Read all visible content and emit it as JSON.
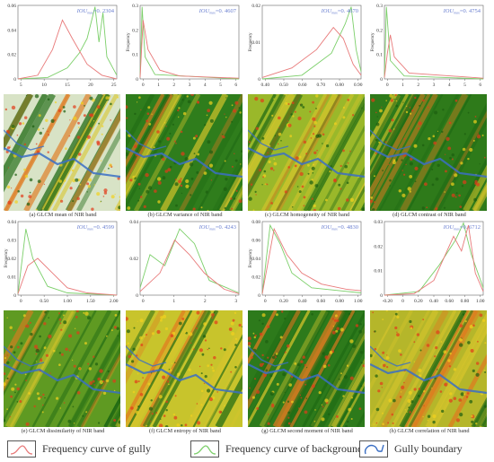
{
  "panels": [
    {
      "iou": "IOU",
      "sub": "max",
      "val": "=0. 2304",
      "caption": "(a) GLCM mean of NIR band",
      "ylab": "",
      "xticks": [
        "5",
        "10",
        "15",
        "20",
        "25"
      ],
      "yticks": [
        "0.06",
        "0.04",
        "0.02",
        "0"
      ],
      "base": "#d8e3c6",
      "style": "mean"
    },
    {
      "iou": "IOU",
      "sub": "max",
      "val": "=0. 4607",
      "caption": "(b) GLCM variance of NIR band",
      "ylab": "Frequency",
      "xticks": [
        "0",
        "1",
        "2",
        "3",
        "4",
        "5",
        "6"
      ],
      "yticks": [
        "0.3",
        "0.2",
        "0.1",
        "0"
      ],
      "base": "#2f7d1c",
      "style": "variance"
    },
    {
      "iou": "IOU",
      "sub": "max",
      "val": "=0. 4670",
      "caption": "(c) GLCM homogeneity of NIR band",
      "ylab": "Frequency",
      "xticks": [
        "0.40",
        "0.50",
        "0.60",
        "0.70",
        "0.80",
        "0.90"
      ],
      "yticks": [
        "0.02",
        "0.01",
        "0"
      ],
      "base": "#9ab82a",
      "style": "homog"
    },
    {
      "iou": "IOU",
      "sub": "max",
      "val": "=0. 4754",
      "caption": "(d) GLCM contrast of NIR band",
      "ylab": "Frequency",
      "xticks": [
        "0",
        "1",
        "2",
        "3",
        "4",
        "5",
        "6"
      ],
      "yticks": [
        "0.3",
        "0.2",
        "0.1",
        "0"
      ],
      "base": "#2e7a1a",
      "style": "contrast"
    },
    {
      "iou": "IOU",
      "sub": "max",
      "val": "=0. 4599",
      "caption": "(e) GLCM dissimilarity of NIR band",
      "ylab": "Frequency",
      "xticks": [
        "0",
        "0.50",
        "1.00",
        "1.50",
        "2.00"
      ],
      "yticks": [
        "0.04",
        "0.03",
        "0.02",
        "0.01",
        "0"
      ],
      "base": "#5f9a22",
      "style": "dissim"
    },
    {
      "iou": "IOU",
      "sub": "max",
      "val": "=0. 4243",
      "caption": "(f) GLCM entropy of NIR band",
      "ylab": "",
      "xticks": [
        "0",
        "1",
        "2",
        "3"
      ],
      "yticks": [
        "0.04",
        "0.02",
        "0"
      ],
      "base": "#c8c42c",
      "style": "entropy"
    },
    {
      "iou": "IOU",
      "sub": "max",
      "val": "=0. 4830",
      "caption": "(g) GLCM second moment of NIR band",
      "ylab": "Frequency",
      "xticks": [
        "0",
        "0.20",
        "0.40",
        "0.60",
        "0.80",
        "1.00"
      ],
      "yticks": [
        "0.08",
        "0.06",
        "0.04",
        "0.02",
        "0"
      ],
      "base": "#2d7a1b",
      "style": "moment"
    },
    {
      "iou": "IOU",
      "sub": "max",
      "val": "=0. 6712",
      "caption": "(h) GLCM correlation of NIR band",
      "ylab": "",
      "xticks": [
        "-0.20",
        "0",
        "0.20",
        "0.40",
        "0.60",
        "0.80",
        "1.00"
      ],
      "yticks": [
        "0.03",
        "0.02",
        "0.01",
        "0"
      ],
      "base": "#b5b62a",
      "style": "corr"
    }
  ],
  "legend": {
    "gully": "Frequency curve of gully",
    "background": "Frequency curve of background",
    "boundary": "Gully boundary"
  },
  "colors": {
    "gully": "#e87a7a",
    "background": "#7ccf6a",
    "boundary": "#3b6fc4",
    "iou_text": "#6a7fd0"
  }
}
